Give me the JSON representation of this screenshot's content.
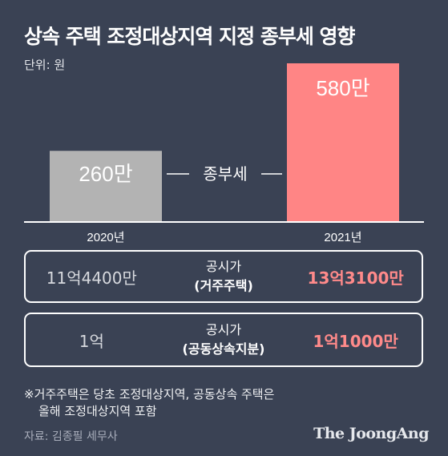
{
  "title": "상속 주택 조정대상지역 지정 종부세 영향",
  "unit": "단위: 원",
  "chart_data": {
    "type": "bar",
    "categories": [
      "2020년",
      "2021년"
    ],
    "values": [
      260,
      580
    ],
    "value_labels": [
      "260만",
      "580만"
    ],
    "series_label": "종부세",
    "colors": [
      "#b3b3b3",
      "#ff8585"
    ]
  },
  "rows": [
    {
      "old": "11억4400만",
      "label_top": "공시가",
      "label_bottom": "(거주주택)",
      "new": "13억3100만"
    },
    {
      "old": "1억",
      "label_top": "공시가",
      "label_bottom": "(공동상속지분)",
      "new": "1억1000만"
    }
  ],
  "note": {
    "line1": "※거주주택은 당초 조정대상지역, 공동상속 주택은",
    "line2": "올해 조정대상지역 포함"
  },
  "source": "자료: 김종필 세무사",
  "logo": "The JoongAng"
}
